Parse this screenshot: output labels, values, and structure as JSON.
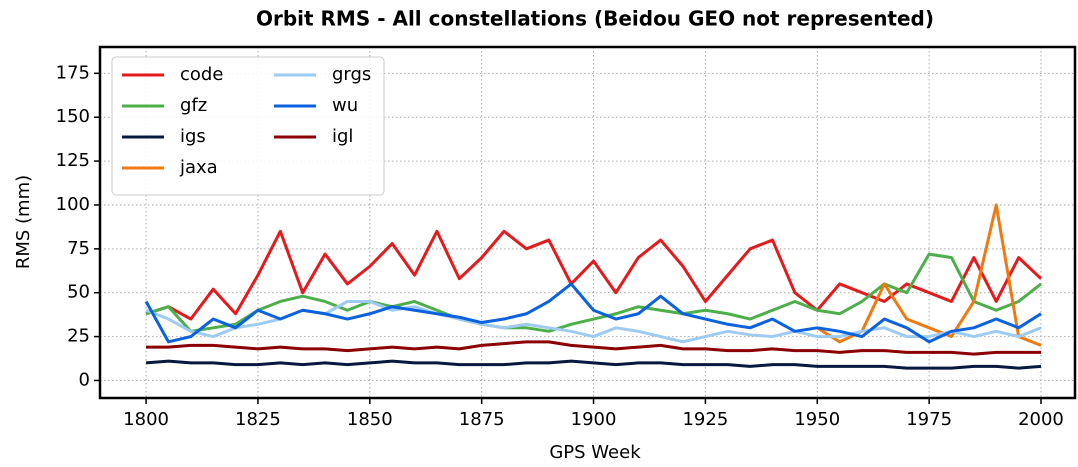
{
  "chart_data": {
    "type": "line",
    "title": "Orbit RMS - All constellations (Beidou GEO not represented)",
    "x_label": "GPS Week",
    "y_label": "RMS (mm)",
    "x": [
      1800,
      1805,
      1810,
      1815,
      1820,
      1825,
      1830,
      1835,
      1840,
      1845,
      1850,
      1855,
      1860,
      1865,
      1870,
      1875,
      1880,
      1885,
      1890,
      1895,
      1900,
      1905,
      1910,
      1915,
      1920,
      1925,
      1930,
      1935,
      1940,
      1945,
      1950,
      1955,
      1960,
      1965,
      1970,
      1975,
      1980,
      1985,
      1990,
      1995,
      2000
    ],
    "series": [
      {
        "name": "code",
        "color": "#e41a1c",
        "values": [
          38,
          42,
          35,
          52,
          38,
          60,
          85,
          50,
          72,
          55,
          65,
          78,
          60,
          85,
          58,
          70,
          85,
          75,
          80,
          55,
          68,
          50,
          70,
          80,
          65,
          45,
          60,
          75,
          80,
          50,
          40,
          55,
          50,
          45,
          55,
          50,
          45,
          70,
          45,
          70,
          58
        ]
      },
      {
        "name": "gfz",
        "color": "#4daf4a",
        "values": [
          38,
          42,
          28,
          30,
          32,
          40,
          45,
          48,
          45,
          40,
          45,
          42,
          45,
          40,
          35,
          32,
          30,
          30,
          28,
          32,
          35,
          38,
          42,
          40,
          38,
          40,
          38,
          35,
          40,
          45,
          40,
          38,
          45,
          55,
          50,
          72,
          70,
          45,
          40,
          45,
          55
        ]
      },
      {
        "name": "igs",
        "color": "#08183f",
        "values": [
          10,
          11,
          10,
          10,
          9,
          9,
          10,
          9,
          10,
          9,
          10,
          11,
          10,
          10,
          9,
          9,
          9,
          10,
          10,
          11,
          10,
          9,
          10,
          10,
          9,
          9,
          9,
          8,
          9,
          9,
          8,
          8,
          8,
          8,
          7,
          7,
          7,
          8,
          8,
          7,
          8
        ]
      },
      {
        "name": "jaxa",
        "color": "#f07a12",
        "values": [
          null,
          null,
          null,
          null,
          null,
          null,
          null,
          null,
          null,
          null,
          null,
          null,
          null,
          null,
          null,
          null,
          null,
          null,
          null,
          null,
          null,
          null,
          null,
          null,
          null,
          null,
          null,
          null,
          null,
          null,
          30,
          22,
          28,
          55,
          35,
          30,
          25,
          45,
          100,
          25,
          20
        ]
      },
      {
        "name": "grgs",
        "color": "#9ecbf2",
        "values": [
          40,
          35,
          28,
          25,
          30,
          32,
          35,
          40,
          38,
          45,
          45,
          40,
          42,
          38,
          35,
          32,
          30,
          32,
          30,
          28,
          25,
          30,
          28,
          25,
          22,
          25,
          28,
          26,
          25,
          28,
          25,
          25,
          28,
          30,
          25,
          25,
          28,
          25,
          28,
          25,
          30
        ]
      },
      {
        "name": "wu",
        "color": "#0a62e0",
        "values": [
          45,
          22,
          25,
          35,
          30,
          40,
          35,
          40,
          38,
          35,
          38,
          42,
          40,
          38,
          36,
          33,
          35,
          38,
          45,
          55,
          40,
          35,
          38,
          48,
          38,
          35,
          32,
          30,
          35,
          28,
          30,
          28,
          25,
          35,
          30,
          22,
          28,
          30,
          35,
          30,
          38
        ]
      },
      {
        "name": "igl",
        "color": "#8b0000",
        "values": [
          19,
          19,
          20,
          20,
          19,
          18,
          19,
          18,
          18,
          17,
          18,
          19,
          18,
          19,
          18,
          20,
          21,
          22,
          22,
          20,
          19,
          18,
          19,
          20,
          18,
          18,
          17,
          17,
          18,
          17,
          17,
          16,
          17,
          17,
          16,
          16,
          16,
          15,
          16,
          16,
          16
        ]
      }
    ],
    "xlim": [
      1789.7,
      2007.6
    ],
    "ylim": [
      -10,
      190
    ],
    "xticks": [
      1800,
      1825,
      1850,
      1875,
      1900,
      1925,
      1950,
      1975,
      2000
    ],
    "yticks": [
      0,
      25,
      50,
      75,
      100,
      125,
      150,
      175
    ],
    "grid": true,
    "legend": "upper left"
  }
}
